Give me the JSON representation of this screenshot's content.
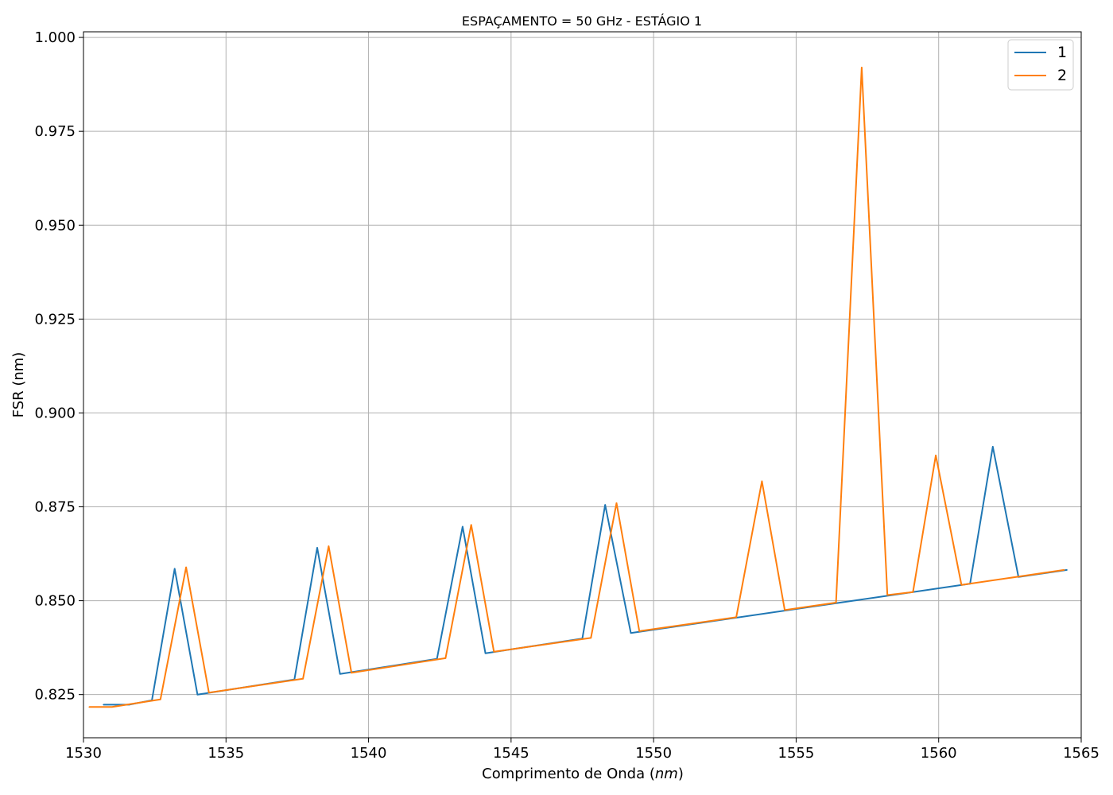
{
  "chart_data": {
    "type": "line",
    "title": "ESPAÇAMENTO = 50 GHz - ESTÁGIO 1",
    "xlabel_prefix": "Comprimento de Onda (",
    "xlabel_unit": "nm",
    "xlabel_suffix": ")",
    "ylabel": "FSR (nm)",
    "xlim": [
      1530,
      1565
    ],
    "ylim": [
      0.8135,
      1.0015
    ],
    "xticks": [
      1530,
      1535,
      1540,
      1545,
      1550,
      1555,
      1560,
      1565
    ],
    "xtick_labels": [
      "1530",
      "1535",
      "1540",
      "1545",
      "1550",
      "1555",
      "1560",
      "1565"
    ],
    "yticks": [
      0.825,
      0.85,
      0.875,
      0.9,
      0.925,
      0.95,
      0.975,
      1.0
    ],
    "ytick_labels": [
      "0.825",
      "0.850",
      "0.875",
      "0.900",
      "0.925",
      "0.950",
      "0.975",
      "1.000"
    ],
    "grid": true,
    "legend_position": "top-right",
    "series": [
      {
        "name": "1",
        "color": "#1f77b4",
        "x": [
          1530.7,
          1531.6,
          1532.4,
          1533.2,
          1534.0,
          1537.4,
          1538.2,
          1539.0,
          1542.4,
          1543.3,
          1544.1,
          1547.5,
          1548.3,
          1549.2,
          1561.1,
          1561.9,
          1562.8,
          1564.5
        ],
        "y": [
          0.8223,
          0.8223,
          0.8235,
          0.8585,
          0.825,
          0.829,
          0.8641,
          0.8305,
          0.8345,
          0.8697,
          0.836,
          0.8399,
          0.8755,
          0.8414,
          0.8545,
          0.891,
          0.8563,
          0.8582
        ]
      },
      {
        "name": "2",
        "color": "#ff7f0e",
        "x": [
          1530.2,
          1531.0,
          1532.7,
          1533.6,
          1534.4,
          1537.7,
          1538.6,
          1539.4,
          1542.7,
          1543.6,
          1544.4,
          1547.8,
          1548.7,
          1549.5,
          1552.9,
          1553.8,
          1554.6,
          1556.4,
          1557.3,
          1558.2,
          1559.1,
          1559.9,
          1560.8,
          1564.4
        ],
        "y": [
          0.8217,
          0.8217,
          0.8237,
          0.8589,
          0.8255,
          0.8292,
          0.8645,
          0.8308,
          0.8347,
          0.8702,
          0.8364,
          0.8401,
          0.876,
          0.8419,
          0.8456,
          0.8818,
          0.8475,
          0.8495,
          0.992,
          0.8515,
          0.8523,
          0.8887,
          0.8542,
          0.8582
        ]
      }
    ]
  }
}
